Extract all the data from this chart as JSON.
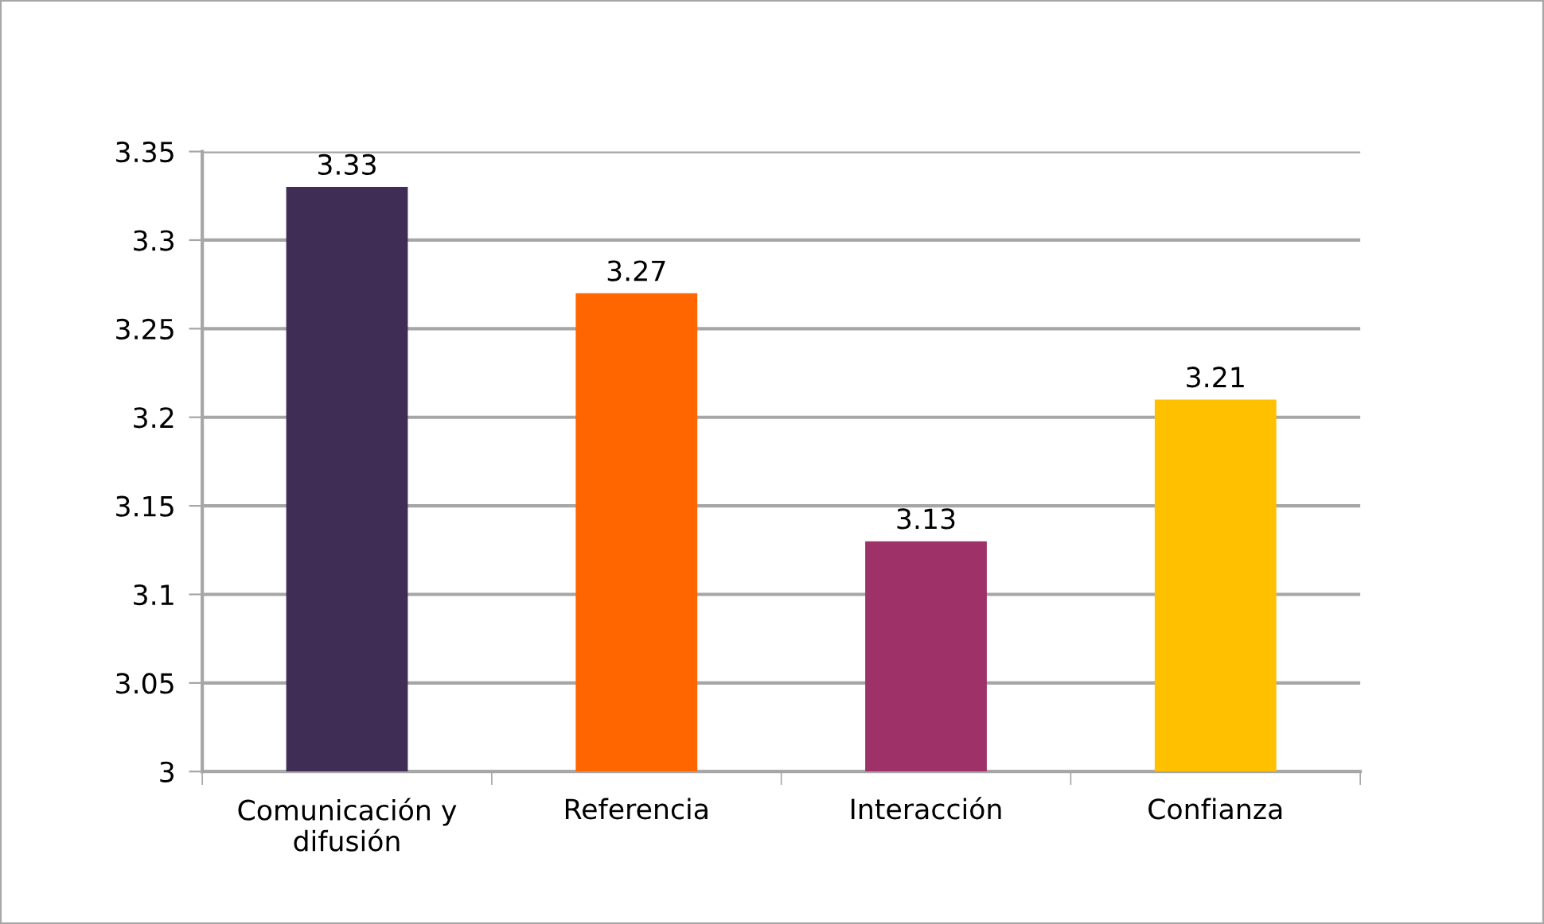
{
  "chart_data": {
    "type": "bar",
    "categories": [
      "Comunicación y difusión",
      "Referencia",
      "Interacción",
      "Confianza"
    ],
    "values": [
      3.33,
      3.27,
      3.13,
      3.21
    ],
    "colors": [
      "#3f2d55",
      "#ff6600",
      "#9e3268",
      "#ffc000"
    ],
    "ylim": [
      3,
      3.35
    ],
    "yticks": [
      {
        "value": 3,
        "label": "3"
      },
      3.05,
      {
        "value": 3.1,
        "label": "3.1"
      },
      3.15,
      {
        "value": 3.2,
        "label": "3.2"
      },
      3.25,
      {
        "value": 3.3,
        "label": "3.3"
      },
      3.35
    ],
    "grid": "y",
    "data_labels": true
  }
}
